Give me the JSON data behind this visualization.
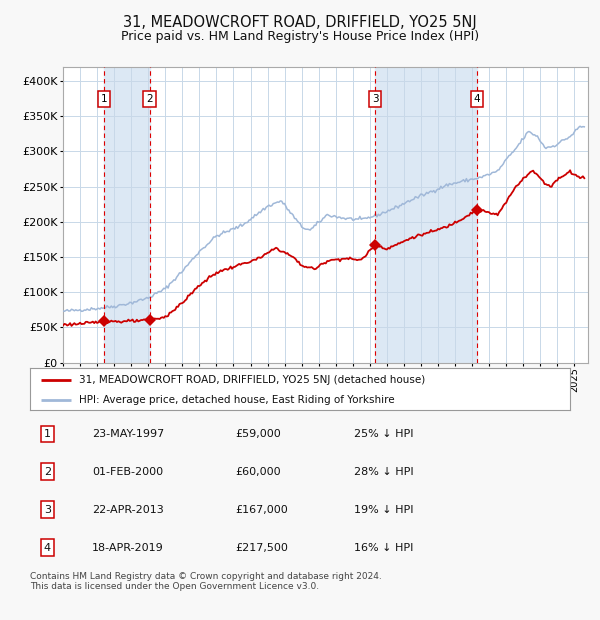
{
  "title": "31, MEADOWCROFT ROAD, DRIFFIELD, YO25 5NJ",
  "subtitle": "Price paid vs. HM Land Registry's House Price Index (HPI)",
  "title_fontsize": 10.5,
  "subtitle_fontsize": 9,
  "bg_color": "#f8f8f8",
  "plot_bg_color": "#ffffff",
  "grid_color": "#c8d8e8",
  "purchases": [
    {
      "date_num": 1997.39,
      "price": 59000,
      "label": "1"
    },
    {
      "date_num": 2000.08,
      "price": 60000,
      "label": "2"
    },
    {
      "date_num": 2013.31,
      "price": 167000,
      "label": "3"
    },
    {
      "date_num": 2019.3,
      "price": 217500,
      "label": "4"
    }
  ],
  "legend_entries": [
    "31, MEADOWCROFT ROAD, DRIFFIELD, YO25 5NJ (detached house)",
    "HPI: Average price, detached house, East Riding of Yorkshire"
  ],
  "table_rows": [
    [
      "1",
      "23-MAY-1997",
      "£59,000",
      "25% ↓ HPI"
    ],
    [
      "2",
      "01-FEB-2000",
      "£60,000",
      "28% ↓ HPI"
    ],
    [
      "3",
      "22-APR-2013",
      "£167,000",
      "19% ↓ HPI"
    ],
    [
      "4",
      "18-APR-2019",
      "£217,500",
      "16% ↓ HPI"
    ]
  ],
  "footer": "Contains HM Land Registry data © Crown copyright and database right 2024.\nThis data is licensed under the Open Government Licence v3.0.",
  "hpi_color": "#a0b8d8",
  "price_color": "#cc0000",
  "marker_color": "#cc0000",
  "dashed_color": "#dd0000",
  "shade_color": "#dce8f4",
  "ylim": [
    0,
    420000
  ],
  "xlim_start": 1995.0,
  "xlim_end": 2025.8
}
